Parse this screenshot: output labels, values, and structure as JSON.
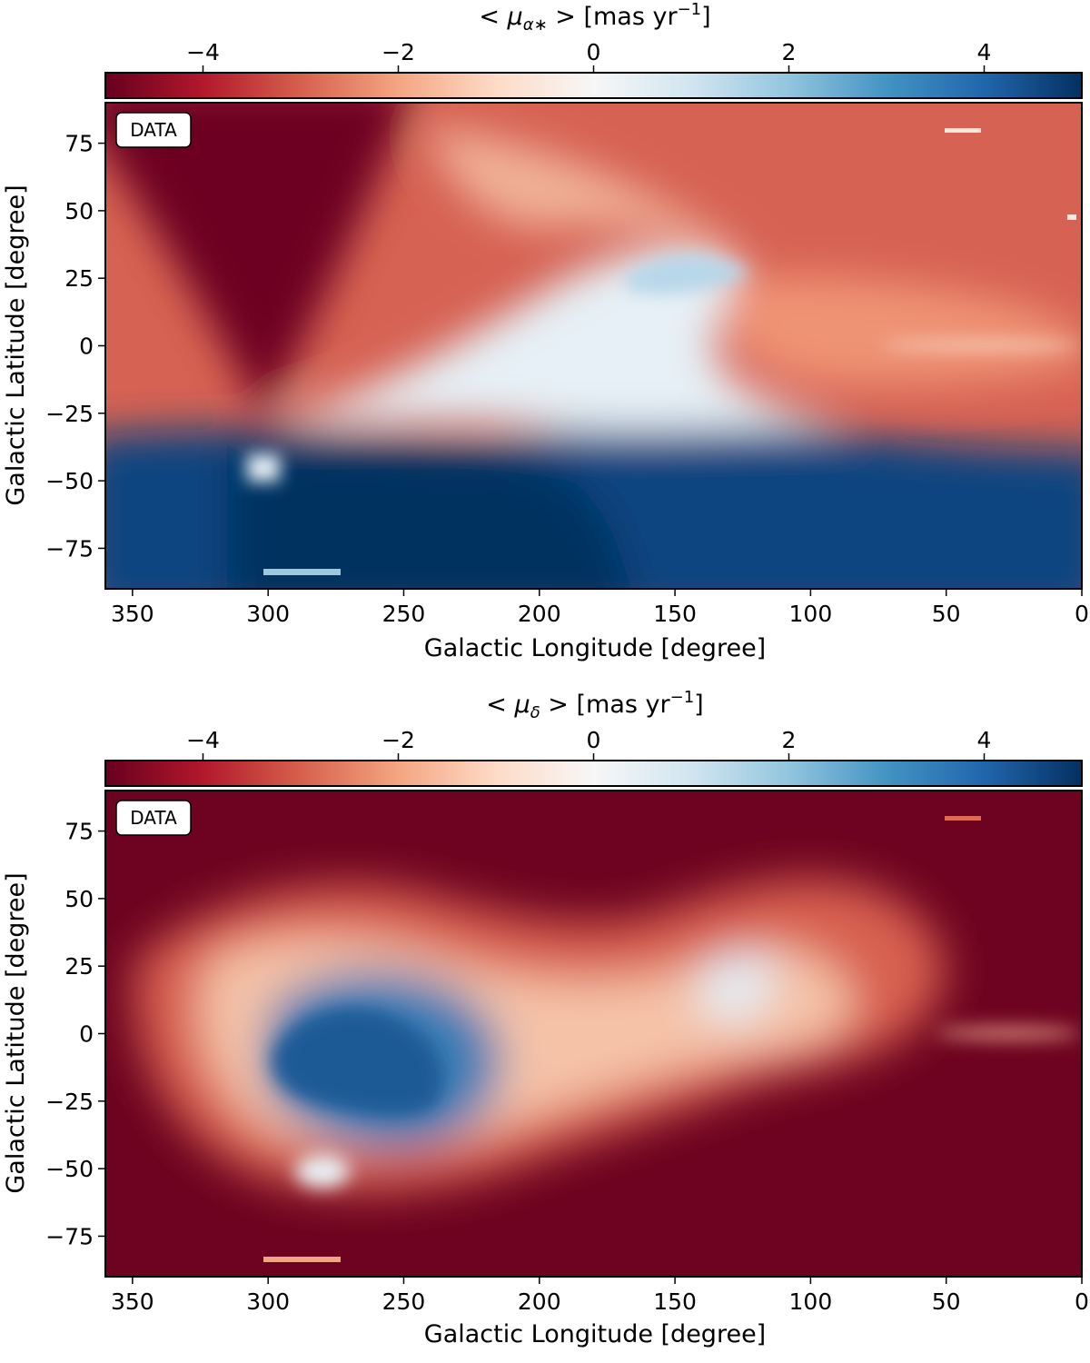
{
  "chart_data": [
    {
      "type": "heatmap",
      "name": "mu_alpha",
      "colorbar_label": "< μ_α* >  [mas yr⁻¹]",
      "colorbar_parts": {
        "pre": "< ",
        "sym": "μ",
        "sub": "α∗",
        "post": " >  [mas yr",
        "exp": "−1",
        "close": "]"
      },
      "colorbar_ticks": [
        {
          "v": -4,
          "label": "−4"
        },
        {
          "v": -2,
          "label": "−2"
        },
        {
          "v": 0,
          "label": "0"
        },
        {
          "v": 2,
          "label": "2"
        },
        {
          "v": 4,
          "label": "4"
        }
      ],
      "colorbar_range": [
        -5,
        5
      ],
      "colormap": "RdBu",
      "badge": "DATA",
      "xlabel": "Galactic Longitude [degree]",
      "ylabel": "Galactic Latitude [degree]",
      "xlim": [
        360,
        0
      ],
      "ylim": [
        -90,
        90
      ],
      "x_ticks": [
        {
          "v": 350,
          "label": "350"
        },
        {
          "v": 300,
          "label": "300"
        },
        {
          "v": 250,
          "label": "250"
        },
        {
          "v": 200,
          "label": "200"
        },
        {
          "v": 150,
          "label": "150"
        },
        {
          "v": 100,
          "label": "100"
        },
        {
          "v": 50,
          "label": "50"
        },
        {
          "v": 0,
          "label": "0"
        }
      ],
      "y_ticks": [
        {
          "v": 75,
          "label": "75"
        },
        {
          "v": 50,
          "label": "50"
        },
        {
          "v": 25,
          "label": "25"
        },
        {
          "v": 0,
          "label": "0"
        },
        {
          "v": -25,
          "label": "−25"
        },
        {
          "v": -50,
          "label": "−50"
        },
        {
          "v": -75,
          "label": "−75"
        }
      ],
      "features": {
        "singular_point_l": 303,
        "singular_point_b": -27,
        "apex_l": 123,
        "apex_b": 27,
        "values": {
          "north_cap": -5,
          "south_cap": 5,
          "ridge": 0.4,
          "right_lobe": -3
        }
      }
    },
    {
      "type": "heatmap",
      "name": "mu_delta",
      "colorbar_label": "< μ_δ >  [mas yr⁻¹]",
      "colorbar_parts": {
        "pre": "< ",
        "sym": "μ",
        "sub": "δ",
        "post": " >  [mas yr",
        "exp": "−1",
        "close": "]"
      },
      "colorbar_ticks": [
        {
          "v": -4,
          "label": "−4"
        },
        {
          "v": -2,
          "label": "−2"
        },
        {
          "v": 0,
          "label": "0"
        },
        {
          "v": 2,
          "label": "2"
        },
        {
          "v": 4,
          "label": "4"
        }
      ],
      "colorbar_range": [
        -5,
        5
      ],
      "colormap": "RdBu",
      "badge": "DATA",
      "xlabel": "Galactic Longitude [degree]",
      "ylabel": "Galactic Latitude [degree]",
      "xlim": [
        360,
        0
      ],
      "ylim": [
        -90,
        90
      ],
      "x_ticks": [
        {
          "v": 350,
          "label": "350"
        },
        {
          "v": 300,
          "label": "300"
        },
        {
          "v": 250,
          "label": "250"
        },
        {
          "v": 200,
          "label": "200"
        },
        {
          "v": 150,
          "label": "150"
        },
        {
          "v": 100,
          "label": "100"
        },
        {
          "v": 50,
          "label": "50"
        },
        {
          "v": 0,
          "label": "0"
        }
      ],
      "y_ticks": [
        {
          "v": 75,
          "label": "75"
        },
        {
          "v": 50,
          "label": "50"
        },
        {
          "v": 25,
          "label": "25"
        },
        {
          "v": 0,
          "label": "0"
        },
        {
          "v": -25,
          "label": "−25"
        },
        {
          "v": -50,
          "label": "−50"
        },
        {
          "v": -75,
          "label": "−75"
        }
      ],
      "features": {
        "blue_blob_l": 255,
        "blue_blob_b": -10,
        "blue_blob_value": 4,
        "small_blob_l": 128,
        "small_blob_b": 12,
        "small_blob_value": 0.8,
        "background_value": -5
      }
    }
  ]
}
